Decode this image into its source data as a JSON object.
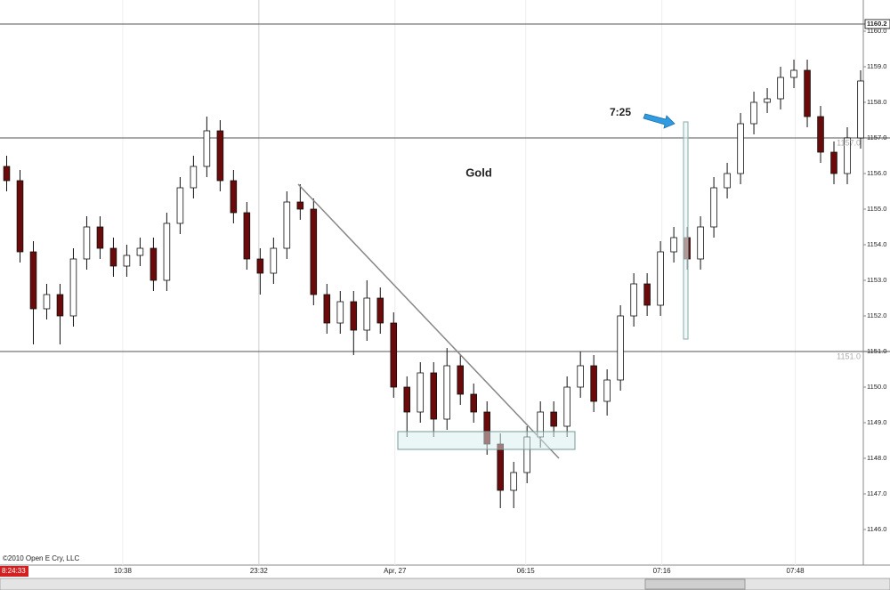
{
  "chart_data": {
    "type": "candlestick",
    "title": "Gold",
    "annotation": "7:25",
    "copyright": "©2010 Open E Cry, LLC",
    "clock": "8:24:33",
    "open": [
      1156.2,
      1155.8,
      1153.8,
      1152.2,
      1152.6,
      1152.0,
      1153.6,
      1154.5,
      1153.9,
      1153.4,
      1153.7,
      1153.9,
      1153.0,
      1154.6,
      1155.6,
      1156.2,
      1157.2,
      1155.8,
      1154.9,
      1153.6,
      1153.2,
      1153.9,
      1155.2,
      1155.0,
      1152.6,
      1151.8,
      1152.4,
      1151.6,
      1152.5,
      1151.8,
      1150.0,
      1149.3,
      1150.4,
      1149.1,
      1150.6,
      1149.8,
      1149.3,
      1148.4,
      1147.1,
      1147.6,
      1148.6,
      1149.3,
      1148.9,
      1150.0,
      1150.6,
      1149.6,
      1150.2,
      1152.0,
      1152.9,
      1152.3,
      1153.8,
      1154.2,
      1153.6,
      1154.5,
      1155.6,
      1156.0,
      1157.4,
      1158.0,
      1158.1,
      1158.7,
      1158.9,
      1157.6,
      1156.6,
      1156.0,
      1157.0
    ],
    "high": [
      1156.5,
      1156.1,
      1154.1,
      1152.9,
      1152.9,
      1153.9,
      1154.8,
      1154.8,
      1154.2,
      1154.0,
      1154.2,
      1154.2,
      1154.9,
      1155.9,
      1156.5,
      1157.6,
      1157.5,
      1156.1,
      1155.2,
      1153.9,
      1154.2,
      1155.5,
      1155.7,
      1155.3,
      1152.9,
      1152.7,
      1152.7,
      1153.0,
      1152.8,
      1152.1,
      1150.3,
      1150.7,
      1150.7,
      1151.1,
      1150.9,
      1150.1,
      1149.6,
      1148.7,
      1147.9,
      1148.9,
      1149.6,
      1149.6,
      1150.3,
      1151.0,
      1150.9,
      1150.5,
      1152.3,
      1153.2,
      1153.2,
      1154.1,
      1154.5,
      1154.5,
      1154.8,
      1155.9,
      1156.3,
      1157.7,
      1158.3,
      1158.4,
      1159.0,
      1159.2,
      1159.2,
      1157.9,
      1156.9,
      1157.3,
      1158.9
    ],
    "low": [
      1155.5,
      1153.5,
      1151.2,
      1151.9,
      1151.2,
      1151.7,
      1153.3,
      1153.6,
      1153.1,
      1153.1,
      1153.4,
      1152.7,
      1152.7,
      1154.3,
      1155.3,
      1155.9,
      1155.5,
      1154.6,
      1153.3,
      1152.6,
      1152.9,
      1153.6,
      1154.7,
      1152.3,
      1151.5,
      1151.5,
      1150.9,
      1151.3,
      1151.5,
      1149.7,
      1148.6,
      1149.0,
      1148.6,
      1148.8,
      1149.5,
      1149.0,
      1148.1,
      1146.6,
      1146.6,
      1147.3,
      1148.3,
      1148.6,
      1148.6,
      1149.7,
      1149.3,
      1149.2,
      1149.9,
      1151.7,
      1152.0,
      1152.0,
      1153.5,
      1153.3,
      1153.3,
      1154.2,
      1155.3,
      1155.7,
      1157.1,
      1157.7,
      1157.8,
      1158.4,
      1157.3,
      1156.3,
      1155.7,
      1155.7,
      1156.7
    ],
    "close": [
      1155.8,
      1153.8,
      1152.2,
      1152.6,
      1152.0,
      1153.6,
      1154.5,
      1153.9,
      1153.4,
      1153.7,
      1153.9,
      1153.0,
      1154.6,
      1155.6,
      1156.2,
      1157.2,
      1155.8,
      1154.9,
      1153.6,
      1153.2,
      1153.9,
      1155.2,
      1155.0,
      1152.6,
      1151.8,
      1152.4,
      1151.6,
      1152.5,
      1151.8,
      1150.0,
      1149.3,
      1150.4,
      1149.1,
      1150.6,
      1149.8,
      1149.3,
      1148.4,
      1147.1,
      1147.6,
      1148.6,
      1149.3,
      1148.9,
      1150.0,
      1150.6,
      1149.6,
      1150.2,
      1152.0,
      1152.9,
      1152.3,
      1153.8,
      1154.2,
      1153.6,
      1154.5,
      1155.6,
      1156.0,
      1157.4,
      1158.0,
      1158.1,
      1158.7,
      1158.9,
      1157.6,
      1156.6,
      1156.0,
      1157.0,
      1158.6
    ],
    "up_color": "#ffffff",
    "down_color": "#6b0a0a",
    "xlim": [
      -0.5,
      64.2
    ],
    "xticks": [
      {
        "value": 8.7,
        "label": "10:38"
      },
      {
        "value": 18.9,
        "label": "23:32"
      },
      {
        "value": 29.1,
        "label": "Apr, 27"
      },
      {
        "value": 38.9,
        "label": "06:15"
      },
      {
        "value": 49.1,
        "label": "07:16"
      },
      {
        "value": 59.1,
        "label": "07:48"
      }
    ],
    "xgrid": true,
    "ylim": [
      1145.0,
      1160.875
    ],
    "yticks": [
      {
        "value": 1146,
        "label": "1146.0"
      },
      {
        "value": 1147,
        "label": "1147.0"
      },
      {
        "value": 1148,
        "label": "1148.0"
      },
      {
        "value": 1149,
        "label": "1149.0"
      },
      {
        "value": 1150,
        "label": "1150.0"
      },
      {
        "value": 1151,
        "label": "1151.0"
      },
      {
        "value": 1152,
        "label": "1152.0"
      },
      {
        "value": 1153,
        "label": "1153.0"
      },
      {
        "value": 1154,
        "label": "1154.0"
      },
      {
        "value": 1155,
        "label": "1155.0"
      },
      {
        "value": 1156,
        "label": "1156.0"
      },
      {
        "value": 1157,
        "label": "1157.0"
      },
      {
        "value": 1158,
        "label": "1158.0"
      },
      {
        "value": 1159,
        "label": "1159.0"
      },
      {
        "value": 1160,
        "label": "1160.0"
      }
    ],
    "levels": [
      {
        "value": 1160.2,
        "label": "1160.2"
      },
      {
        "value": 1157.0,
        "label": "1157.0"
      },
      {
        "value": 1151.0,
        "label": "1151.0"
      }
    ]
  }
}
